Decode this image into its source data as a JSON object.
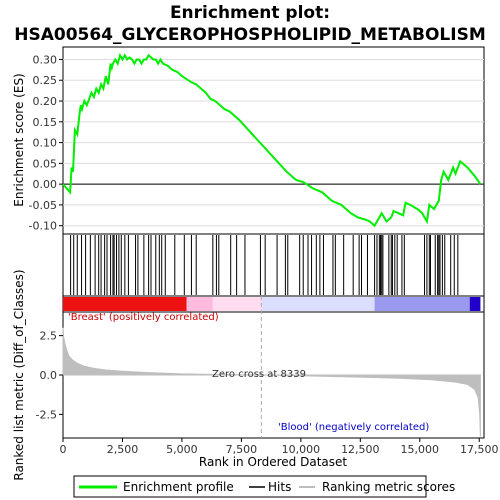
{
  "title_line1": "Enrichment plot:",
  "title_line2": "HSA00564_GLYCEROPHOSPHOLIPID_METABOLISM",
  "colors": {
    "enrichment": "#00ee00",
    "hits": "#000000",
    "metric": "#bebebe",
    "positive_label": "#cc0000",
    "negative_label": "#0000cc"
  },
  "chart_data": [
    {
      "type": "line",
      "name": "enrichment_profile",
      "ylabel": "Enrichment score (ES)",
      "xlim": [
        0,
        17700
      ],
      "ylim": [
        -0.12,
        0.33
      ],
      "grid": true,
      "y_ticks": [
        "-0.10",
        "-0.05",
        "0.00",
        "0.05",
        "0.10",
        "0.15",
        "0.20",
        "0.25",
        "0.30"
      ],
      "y_tick_values": [
        -0.1,
        -0.05,
        0.0,
        0.05,
        0.1,
        0.15,
        0.2,
        0.25,
        0.3
      ],
      "series": [
        {
          "x": [
            0,
            300,
            360,
            420,
            500,
            600,
            700,
            750,
            800,
            900,
            1000,
            1200,
            1300,
            1400,
            1500,
            1600,
            1700,
            1800,
            1900,
            2000,
            2050,
            2100,
            2200,
            2300,
            2400,
            2500,
            2600,
            2700,
            2800,
            2900,
            3000,
            3100,
            3200,
            3300,
            3400,
            3500,
            3600,
            3700,
            3800,
            3900,
            4000,
            4100,
            4200,
            4400,
            4600,
            4800,
            5000,
            5400,
            5600,
            5800,
            6000,
            6200,
            6400,
            6600,
            6800,
            7000,
            7400,
            7800,
            8200,
            8600,
            9000,
            9400,
            9800,
            10100,
            10500,
            10900,
            11300,
            11700,
            12100,
            12400,
            12700,
            12900,
            13100,
            13300,
            13400,
            13600,
            13800,
            13900,
            14100,
            14300,
            14400,
            14600,
            14900,
            15100,
            15300,
            15400,
            15500,
            15600,
            15700,
            15800,
            15900,
            16000,
            16200,
            16400,
            16500,
            16700,
            17000,
            17300,
            17550
          ],
          "y": [
            0.0,
            -0.02,
            0.04,
            0.03,
            0.13,
            0.12,
            0.17,
            0.19,
            0.18,
            0.2,
            0.19,
            0.22,
            0.21,
            0.23,
            0.22,
            0.24,
            0.23,
            0.26,
            0.24,
            0.29,
            0.28,
            0.29,
            0.3,
            0.29,
            0.31,
            0.3,
            0.31,
            0.3,
            0.305,
            0.3,
            0.29,
            0.3,
            0.3,
            0.29,
            0.3,
            0.3,
            0.31,
            0.305,
            0.3,
            0.3,
            0.29,
            0.3,
            0.29,
            0.285,
            0.275,
            0.27,
            0.26,
            0.245,
            0.24,
            0.23,
            0.22,
            0.205,
            0.2,
            0.19,
            0.18,
            0.175,
            0.155,
            0.13,
            0.105,
            0.08,
            0.055,
            0.03,
            0.01,
            0.005,
            -0.01,
            -0.02,
            -0.04,
            -0.05,
            -0.07,
            -0.08,
            -0.085,
            -0.09,
            -0.1,
            -0.08,
            -0.07,
            -0.09,
            -0.08,
            -0.065,
            -0.07,
            -0.075,
            -0.045,
            -0.05,
            -0.06,
            -0.07,
            -0.09,
            -0.05,
            -0.055,
            -0.06,
            -0.05,
            -0.04,
            0.01,
            0.03,
            0.01,
            0.04,
            0.025,
            0.055,
            0.04,
            0.02,
            0.0
          ]
        }
      ]
    },
    {
      "type": "barcode",
      "name": "hits",
      "positions": [
        320,
        450,
        600,
        780,
        950,
        1150,
        1350,
        1500,
        1600,
        1750,
        1850,
        2000,
        2100,
        2150,
        2250,
        2350,
        2450,
        2600,
        2750,
        3050,
        3150,
        3400,
        3600,
        3700,
        3900,
        4050,
        4150,
        4300,
        4700,
        5100,
        5400,
        5600,
        6300,
        6450,
        6550,
        7050,
        7300,
        7650,
        8300,
        8500,
        9000,
        9350,
        9450,
        9950,
        10100,
        10300,
        10450,
        10650,
        10800,
        10950,
        11350,
        11450,
        11800,
        12200,
        12450,
        12550,
        12800,
        13100,
        13200,
        13300,
        13350,
        13400,
        13450,
        13700,
        13800,
        13850,
        13950,
        14050,
        14250,
        14350,
        15200,
        15300,
        15400,
        15450,
        15650,
        15750,
        15800,
        15850,
        15950,
        16050,
        16300,
        16450,
        16600
      ]
    },
    {
      "type": "heatmap",
      "name": "ranked_list_colorbar",
      "segments": [
        {
          "from": 0,
          "to": 5200,
          "color": "#ee1111"
        },
        {
          "from": 5200,
          "to": 6300,
          "color": "#ffbbdd"
        },
        {
          "from": 6300,
          "to": 8339,
          "color": "#ffddee"
        },
        {
          "from": 8339,
          "to": 13100,
          "color": "#ddddff"
        },
        {
          "from": 13100,
          "to": 17100,
          "color": "#9999ee"
        },
        {
          "from": 17100,
          "to": 17550,
          "color": "#2200cc"
        }
      ]
    },
    {
      "type": "area",
      "name": "ranked_list_metric",
      "xlabel": "Rank in Ordered Dataset",
      "ylabel": "Ranked list metric (Diff_of_Classes)",
      "xlim": [
        0,
        17700
      ],
      "ylim": [
        -4.0,
        4.0
      ],
      "y_ticks": [
        "-2.5",
        "0.0",
        "2.5"
      ],
      "y_tick_values": [
        -2.5,
        0.0,
        2.5
      ],
      "x_ticks": [
        "0",
        "2,500",
        "5,000",
        "7,500",
        "10,000",
        "12,500",
        "15,000",
        "17,500"
      ],
      "x_tick_values": [
        0,
        2500,
        5000,
        7500,
        10000,
        12500,
        15000,
        17500
      ],
      "x": [
        0,
        30,
        80,
        150,
        250,
        400,
        600,
        900,
        1300,
        1800,
        2500,
        3500,
        5000,
        6500,
        8339,
        10000,
        12000,
        14000,
        15500,
        16500,
        17000,
        17300,
        17450,
        17520,
        17550
      ],
      "y": [
        3.0,
        2.4,
        2.0,
        1.6,
        1.2,
        0.95,
        0.75,
        0.55,
        0.42,
        0.32,
        0.24,
        0.16,
        0.07,
        0.03,
        0.0,
        -0.05,
        -0.12,
        -0.2,
        -0.3,
        -0.45,
        -0.6,
        -0.9,
        -1.4,
        -2.5,
        -3.9
      ],
      "annotations": {
        "positive": "'Breast' (positively correlated)",
        "negative": "'Blood' (negatively correlated)",
        "zero_cross": "Zero cross at 8339"
      },
      "zero_cross": 8339
    }
  ],
  "legend": {
    "items": [
      {
        "label": "Enrichment profile",
        "color": "#00ee00"
      },
      {
        "label": "Hits",
        "color": "#000000"
      },
      {
        "label": "Ranking metric scores",
        "color": "#bebebe"
      }
    ]
  }
}
